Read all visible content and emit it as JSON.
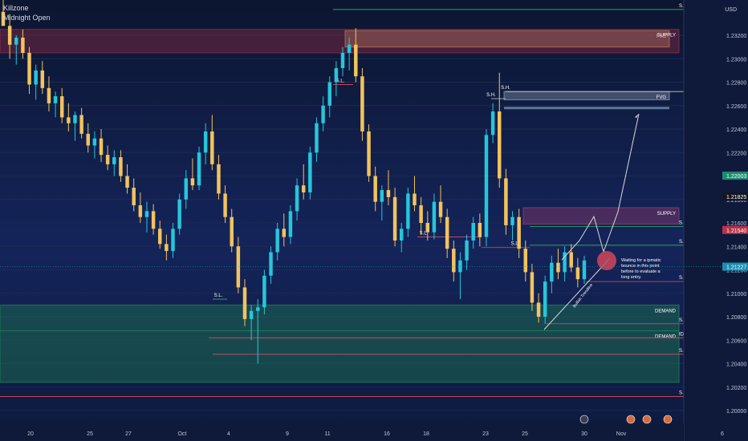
{
  "legend": {
    "line1": "Killzone",
    "line2": "Midnight Open"
  },
  "currency": "USD",
  "chart_data": {
    "type": "candlestick",
    "ylim": [
      1.19,
      1.235
    ],
    "y_ticks": [
      1.232,
      1.23,
      1.228,
      1.226,
      1.224,
      1.222,
      1.22,
      1.218,
      1.216,
      1.214,
      1.212,
      1.21,
      1.208,
      1.206,
      1.204,
      1.202,
      1.2
    ],
    "y_tick_labels": [
      "1.23200",
      "1.23000",
      "1.22800",
      "1.22600",
      "1.22400",
      "1.22200",
      "1.22000",
      "1.21800",
      "1.21600",
      "1.21400",
      "1.21200",
      "1.21000",
      "1.20800",
      "1.20600",
      "1.20400",
      "1.20200",
      "1.20000"
    ],
    "price_tags": [
      {
        "label": "1.22003",
        "value": 1.22003,
        "color": "#1e8a72"
      },
      {
        "label": "1.21825",
        "value": 1.21825,
        "color": "#131722"
      },
      {
        "label": "1.21540",
        "value": 1.2154,
        "color": "#b8324a"
      },
      {
        "label": "1.21227",
        "value": 1.21227,
        "color": "#1b8fb0"
      }
    ],
    "x_labels": [
      "20",
      "25",
      "27",
      "Oct",
      "4",
      "9",
      "11",
      "16",
      "18",
      "23",
      "25",
      "30",
      "Nov",
      "6"
    ],
    "zones": [
      {
        "label": "FVG",
        "y_top": 1.2324,
        "y_bottom": 1.231,
        "color": "#c8a26a"
      },
      {
        "label": "SUPPLY",
        "y_top": 1.2325,
        "y_bottom": 1.2305,
        "color": "#8a2a42"
      },
      {
        "label": "FVG",
        "y_top": 1.2272,
        "y_bottom": 1.2265,
        "color": "#7e8fa6"
      },
      {
        "label": "SUPPLY",
        "y_top": 1.2173,
        "y_bottom": 1.2159,
        "color": "#8a3a6a"
      },
      {
        "label": "DEMAND",
        "y_top": 1.209,
        "y_bottom": 1.2068,
        "color": "#1f7a52"
      },
      {
        "label": "DEMAND",
        "y_top": 1.2068,
        "y_bottom": 1.2024,
        "color": "#1f7a52"
      }
    ],
    "level_labels": [
      "S.H.",
      "S.H.",
      "S.L.",
      "S.H.",
      "S.L.",
      "S.L.",
      "S.L.",
      "S.H.",
      "S.L.",
      "S.H.",
      "S.L.",
      "IDM/IDM/L.S.L.",
      "S.L.",
      "S.L."
    ],
    "annotation": "Waiting for a ipmatic bounce in this point before to evaluate a long entry.",
    "trendline_label": "Bullish Trendline",
    "candles": [
      [
        1.234,
        1.2355,
        1.233,
        1.2328
      ],
      [
        1.2328,
        1.2338,
        1.23,
        1.2312
      ],
      [
        1.2312,
        1.232,
        1.2295,
        1.2318
      ],
      [
        1.2318,
        1.2325,
        1.23,
        1.2305
      ],
      [
        1.2305,
        1.231,
        1.227,
        1.2278
      ],
      [
        1.2278,
        1.2295,
        1.2265,
        1.229
      ],
      [
        1.229,
        1.2298,
        1.227,
        1.2275
      ],
      [
        1.2275,
        1.2285,
        1.2255,
        1.2262
      ],
      [
        1.2262,
        1.2272,
        1.225,
        1.2268
      ],
      [
        1.2268,
        1.2275,
        1.2245,
        1.225
      ],
      [
        1.225,
        1.2262,
        1.2238,
        1.2245
      ],
      [
        1.2245,
        1.2255,
        1.223,
        1.2252
      ],
      [
        1.2252,
        1.2258,
        1.2232,
        1.2236
      ],
      [
        1.2236,
        1.2245,
        1.222,
        1.2226
      ],
      [
        1.2226,
        1.2238,
        1.2215,
        1.2232
      ],
      [
        1.2232,
        1.224,
        1.2212,
        1.2218
      ],
      [
        1.2218,
        1.2226,
        1.2205,
        1.221
      ],
      [
        1.221,
        1.2222,
        1.22,
        1.2216
      ],
      [
        1.2216,
        1.2222,
        1.2195,
        1.22
      ],
      [
        1.22,
        1.221,
        1.2185,
        1.219
      ],
      [
        1.219,
        1.2198,
        1.217,
        1.2175
      ],
      [
        1.2175,
        1.2186,
        1.216,
        1.2165
      ],
      [
        1.2165,
        1.2178,
        1.2152,
        1.217
      ],
      [
        1.217,
        1.2176,
        1.215,
        1.2155
      ],
      [
        1.2155,
        1.2162,
        1.2138,
        1.2142
      ],
      [
        1.2142,
        1.215,
        1.2128,
        1.2136
      ],
      [
        1.2136,
        1.216,
        1.213,
        1.2155
      ],
      [
        1.2155,
        1.2185,
        1.215,
        1.218
      ],
      [
        1.218,
        1.2205,
        1.2172,
        1.2198
      ],
      [
        1.2198,
        1.2215,
        1.2188,
        1.2192
      ],
      [
        1.2192,
        1.2225,
        1.2188,
        1.222
      ],
      [
        1.222,
        1.2245,
        1.221,
        1.2238
      ],
      [
        1.2238,
        1.2252,
        1.2205,
        1.221
      ],
      [
        1.221,
        1.2218,
        1.218,
        1.2185
      ],
      [
        1.2185,
        1.2192,
        1.216,
        1.2165
      ],
      [
        1.2165,
        1.2172,
        1.2135,
        1.214
      ],
      [
        1.214,
        1.2148,
        1.21,
        1.2105
      ],
      [
        1.2105,
        1.2112,
        1.2072,
        1.2078
      ],
      [
        1.2078,
        1.209,
        1.206,
        1.2085
      ],
      [
        1.2085,
        1.2095,
        1.204,
        1.2088
      ],
      [
        1.2088,
        1.212,
        1.2082,
        1.2115
      ],
      [
        1.2115,
        1.214,
        1.2108,
        1.2135
      ],
      [
        1.2135,
        1.216,
        1.2128,
        1.2155
      ],
      [
        1.2155,
        1.2168,
        1.214,
        1.2148
      ],
      [
        1.2148,
        1.2175,
        1.2142,
        1.217
      ],
      [
        1.217,
        1.2198,
        1.2162,
        1.2192
      ],
      [
        1.2192,
        1.221,
        1.218,
        1.2186
      ],
      [
        1.2186,
        1.2225,
        1.218,
        1.222
      ],
      [
        1.222,
        1.225,
        1.2212,
        1.2245
      ],
      [
        1.2245,
        1.2268,
        1.2238,
        1.226
      ],
      [
        1.226,
        1.2285,
        1.225,
        1.228
      ],
      [
        1.228,
        1.2298,
        1.2268,
        1.2292
      ],
      [
        1.2292,
        1.231,
        1.2285,
        1.2305
      ],
      [
        1.2305,
        1.2318,
        1.229,
        1.2312
      ],
      [
        1.2312,
        1.2326,
        1.228,
        1.2285
      ],
      [
        1.2285,
        1.2292,
        1.223,
        1.2238
      ],
      [
        1.2238,
        1.2244,
        1.2195,
        1.22
      ],
      [
        1.22,
        1.2208,
        1.217,
        1.2178
      ],
      [
        1.2178,
        1.2192,
        1.2162,
        1.2188
      ],
      [
        1.2188,
        1.2205,
        1.2175,
        1.2182
      ],
      [
        1.2182,
        1.219,
        1.214,
        1.2145
      ],
      [
        1.2145,
        1.216,
        1.2135,
        1.2155
      ],
      [
        1.2155,
        1.219,
        1.2148,
        1.2185
      ],
      [
        1.2185,
        1.22,
        1.217,
        1.2175
      ],
      [
        1.2175,
        1.2182,
        1.215,
        1.216
      ],
      [
        1.216,
        1.217,
        1.2145,
        1.2152
      ],
      [
        1.2152,
        1.2185,
        1.2146,
        1.2178
      ],
      [
        1.2178,
        1.2192,
        1.216,
        1.2165
      ],
      [
        1.2165,
        1.2172,
        1.213,
        1.2138
      ],
      [
        1.2138,
        1.2145,
        1.211,
        1.2118
      ],
      [
        1.2118,
        1.2135,
        1.2095,
        1.2128
      ],
      [
        1.2128,
        1.215,
        1.212,
        1.2145
      ],
      [
        1.2145,
        1.2165,
        1.2138,
        1.216
      ],
      [
        1.216,
        1.2168,
        1.214,
        1.2148
      ],
      [
        1.2148,
        1.224,
        1.214,
        1.2235
      ],
      [
        1.2235,
        1.2262,
        1.2228,
        1.2255
      ],
      [
        1.2255,
        1.2288,
        1.219,
        1.2198
      ],
      [
        1.2198,
        1.2206,
        1.215,
        1.2158
      ],
      [
        1.2158,
        1.217,
        1.2145,
        1.2165
      ],
      [
        1.2165,
        1.2172,
        1.213,
        1.2138
      ],
      [
        1.2138,
        1.2145,
        1.211,
        1.2118
      ],
      [
        1.2118,
        1.2125,
        1.2085,
        1.2092
      ],
      [
        1.2092,
        1.21,
        1.2075,
        1.208
      ],
      [
        1.208,
        1.2115,
        1.2074,
        1.211
      ],
      [
        1.211,
        1.2132,
        1.21,
        1.2126
      ],
      [
        1.2126,
        1.2138,
        1.2112,
        1.2118
      ],
      [
        1.2118,
        1.214,
        1.211,
        1.2135
      ],
      [
        1.2135,
        1.2142,
        1.2118,
        1.2122
      ],
      [
        1.2122,
        1.213,
        1.2105,
        1.2112
      ],
      [
        1.2112,
        1.2132,
        1.2108,
        1.2128
      ]
    ]
  }
}
